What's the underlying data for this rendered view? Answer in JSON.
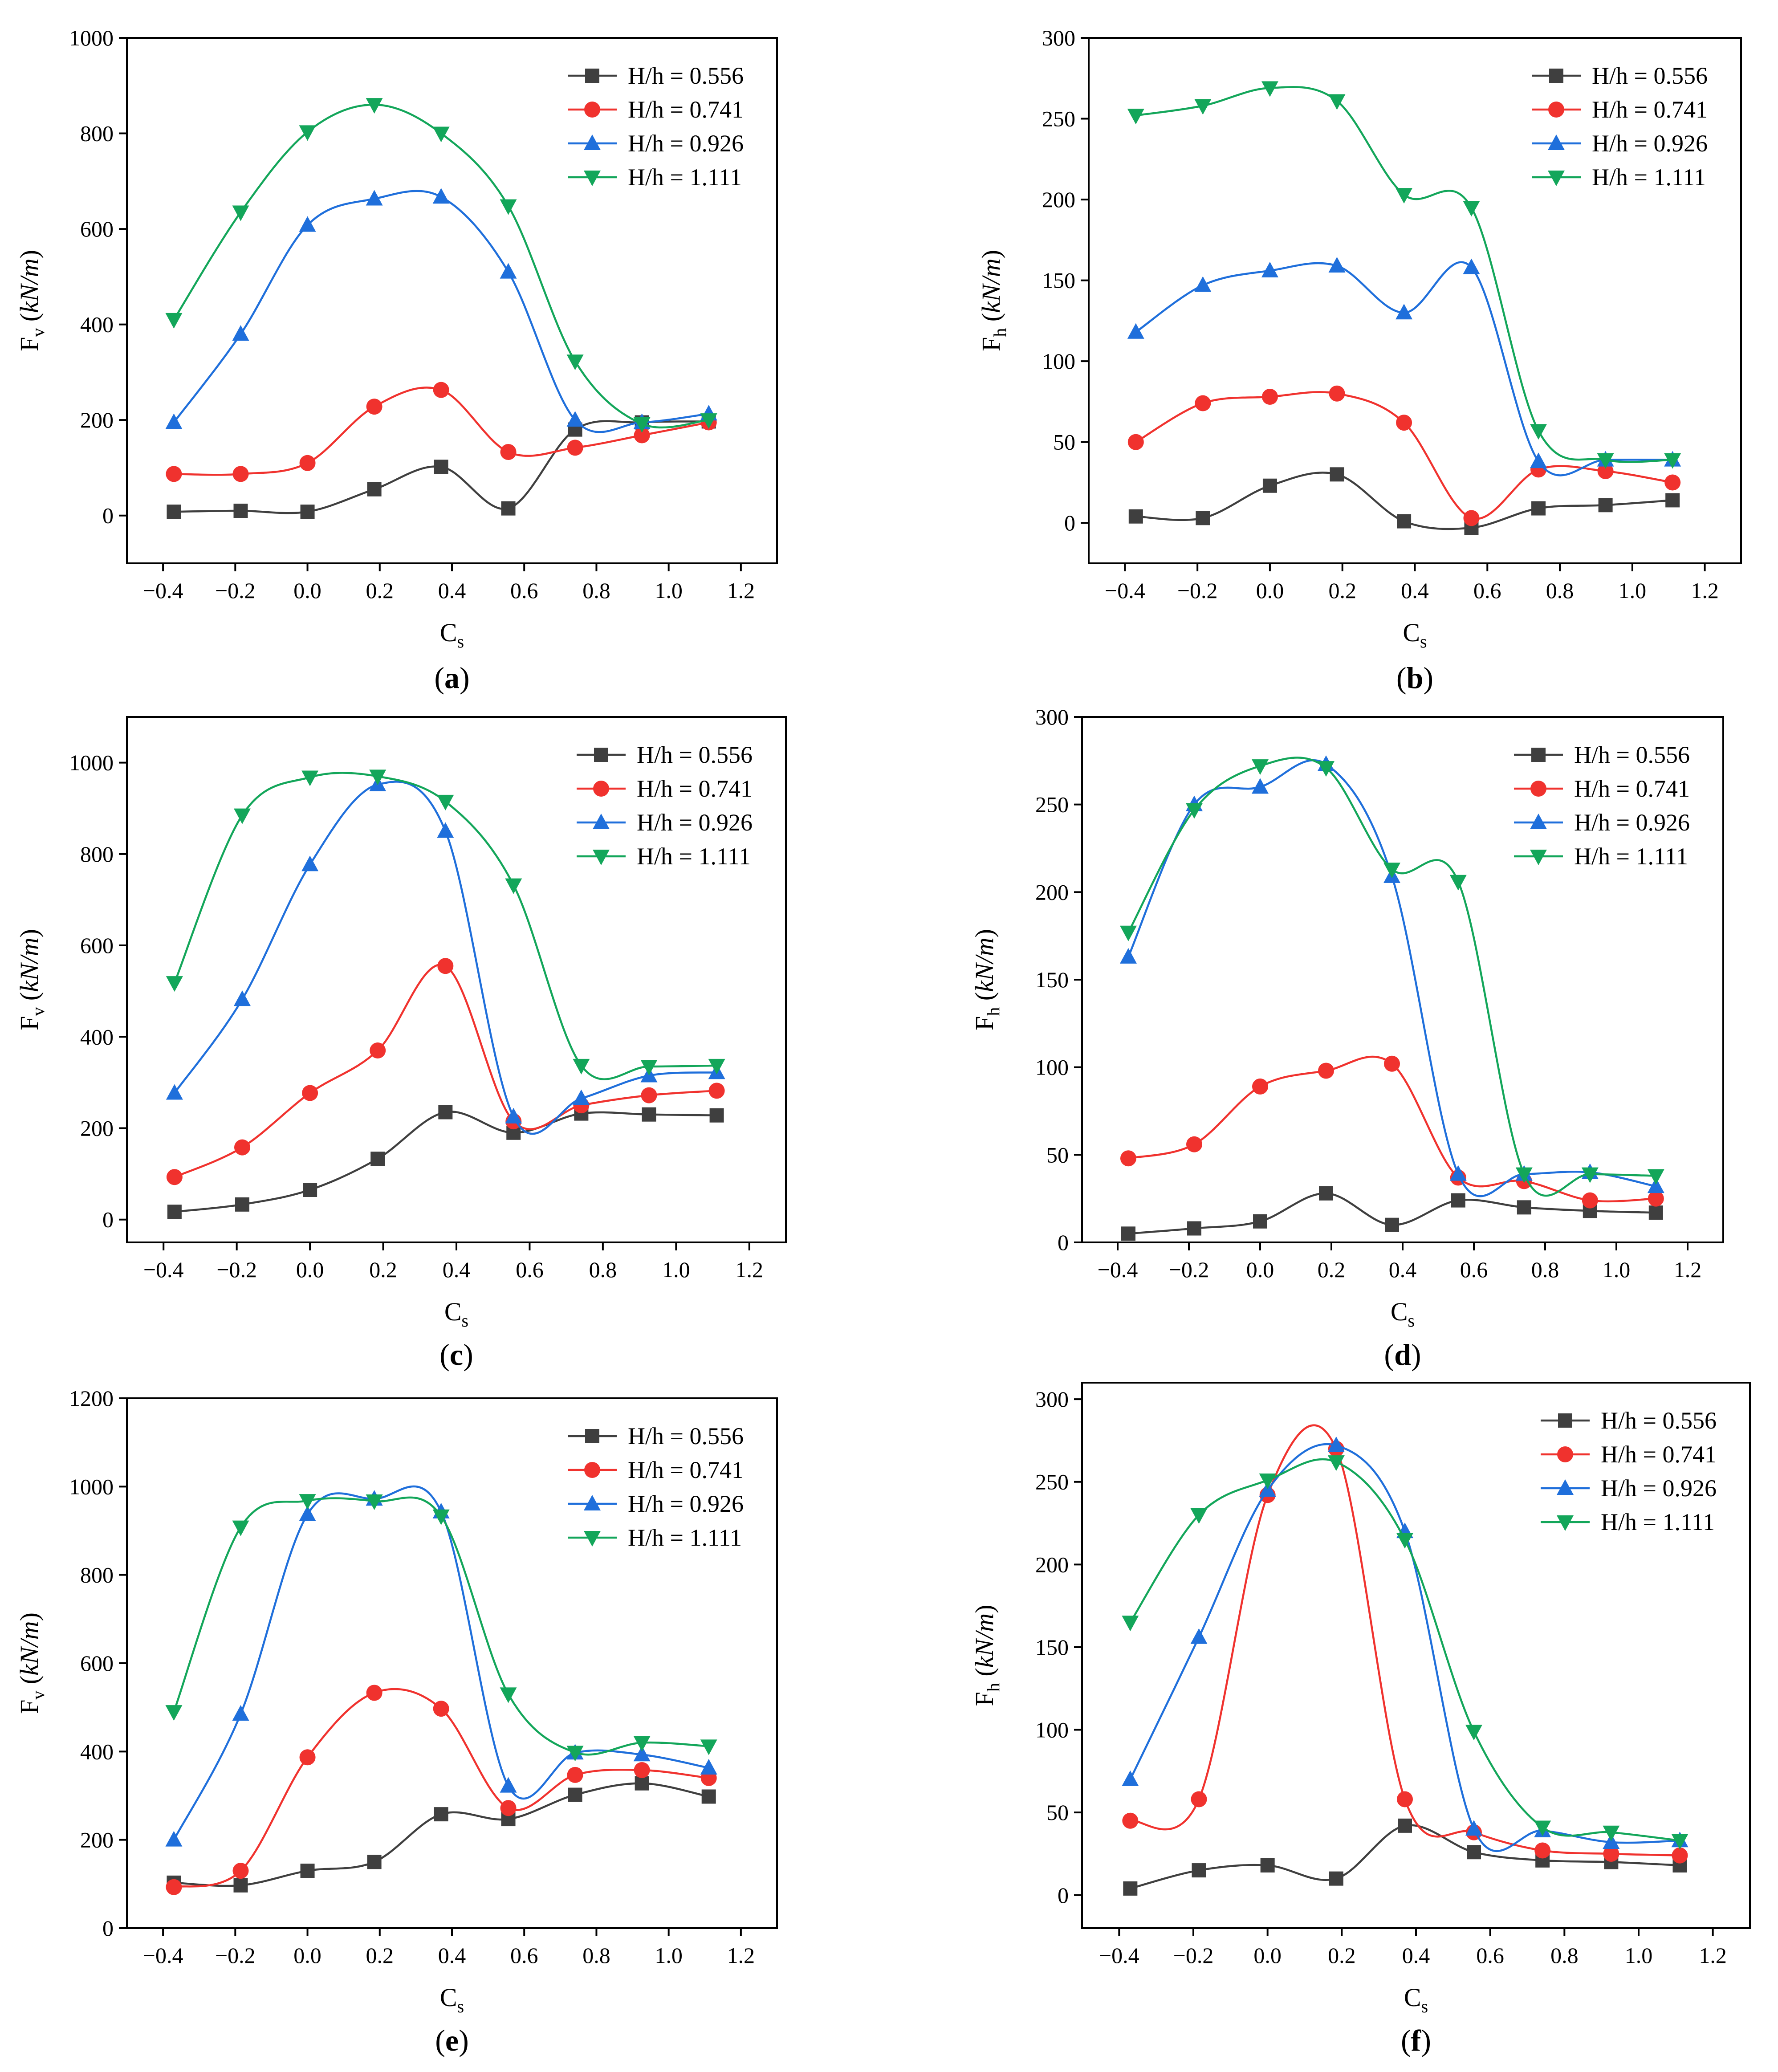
{
  "colors": {
    "H/h = 0.556": "#3f3f3f",
    "H/h = 0.741": "#f0322e",
    "H/h = 0.926": "#1f6fdb",
    "H/h = 1.111": "#13a65a"
  },
  "markers": {
    "H/h = 0.556": "square",
    "H/h = 0.741": "circle",
    "H/h = 0.926": "triangle-up",
    "H/h = 1.111": "triangle-down"
  },
  "chart_data": [
    {
      "panel": "a",
      "type": "line",
      "xlabel": "C",
      "xlabel_sub": "s",
      "ylabel": "F",
      "ylabel_sub": "v",
      "ylabel_unit": "kN/m",
      "xlim": [
        -0.5,
        1.3
      ],
      "ylim": [
        -100,
        1000
      ],
      "xticks": [
        "-0.4",
        "-0.2",
        "0.0",
        "0.2",
        "0.4",
        "0.6",
        "0.8",
        "1.0",
        "1.2"
      ],
      "yticks": [
        "0",
        "200",
        "400",
        "600",
        "800",
        "1000"
      ],
      "x": [
        -0.37,
        -0.185,
        0,
        0.185,
        0.37,
        0.556,
        0.741,
        0.926,
        1.111
      ],
      "series": [
        {
          "name": "H/h = 0.556",
          "values": [
            8,
            10,
            8,
            55,
            102,
            15,
            180,
            195,
            197
          ]
        },
        {
          "name": "H/h = 0.741",
          "values": [
            87,
            87,
            110,
            228,
            263,
            133,
            142,
            168,
            195
          ]
        },
        {
          "name": "H/h = 0.926",
          "values": [
            195,
            380,
            608,
            663,
            667,
            510,
            200,
            195,
            213
          ]
        },
        {
          "name": "H/h = 1.111",
          "values": [
            410,
            635,
            803,
            860,
            800,
            648,
            323,
            192,
            200
          ]
        }
      ],
      "legend": [
        "H/h = 0.556",
        "H/h = 0.741",
        "H/h = 0.926",
        "H/h = 1.111"
      ]
    },
    {
      "panel": "b",
      "type": "line",
      "xlabel": "C",
      "xlabel_sub": "s",
      "ylabel": "F",
      "ylabel_sub": "h",
      "ylabel_unit": "kN/m",
      "xlim": [
        -0.5,
        1.3
      ],
      "ylim": [
        -25,
        300
      ],
      "xticks": [
        "-0.4",
        "-0.2",
        "0.0",
        "0.2",
        "0.4",
        "0.6",
        "0.8",
        "1.0",
        "1.2"
      ],
      "yticks": [
        "0",
        "50",
        "100",
        "150",
        "200",
        "250",
        "300"
      ],
      "x": [
        -0.37,
        -0.185,
        0,
        0.185,
        0.37,
        0.556,
        0.741,
        0.926,
        1.111
      ],
      "series": [
        {
          "name": "H/h = 0.556",
          "values": [
            4,
            3,
            23,
            30,
            1,
            -3,
            9,
            11,
            14
          ]
        },
        {
          "name": "H/h = 0.741",
          "values": [
            50,
            74,
            78,
            80,
            62,
            3,
            33,
            32,
            25
          ]
        },
        {
          "name": "H/h = 0.926",
          "values": [
            118,
            147,
            156,
            159,
            130,
            158,
            38,
            39,
            39
          ]
        },
        {
          "name": "H/h = 1.111",
          "values": [
            252,
            258,
            269,
            261,
            203,
            195,
            57,
            39,
            39
          ]
        }
      ],
      "legend": [
        "H/h = 0.556",
        "H/h = 0.741",
        "H/h = 0.926",
        "H/h = 1.111"
      ]
    },
    {
      "panel": "c",
      "type": "line",
      "xlabel": "C",
      "xlabel_sub": "s",
      "ylabel": "F",
      "ylabel_sub": "v",
      "ylabel_unit": "kN/m",
      "xlim": [
        -0.5,
        1.3
      ],
      "ylim": [
        -50,
        1100
      ],
      "xticks": [
        "-0.4",
        "-0.2",
        "0.0",
        "0.2",
        "0.4",
        "0.6",
        "0.8",
        "1.0",
        "1.2"
      ],
      "yticks": [
        "0",
        "200",
        "400",
        "600",
        "800",
        "1000"
      ],
      "x": [
        -0.37,
        -0.185,
        0,
        0.185,
        0.37,
        0.556,
        0.741,
        0.926,
        1.111
      ],
      "series": [
        {
          "name": "H/h = 0.556",
          "values": [
            17,
            33,
            65,
            133,
            235,
            190,
            232,
            230,
            228
          ]
        },
        {
          "name": "H/h = 0.741",
          "values": [
            93,
            158,
            277,
            370,
            555,
            215,
            250,
            272,
            282
          ]
        },
        {
          "name": "H/h = 0.926",
          "values": [
            277,
            482,
            777,
            952,
            850,
            225,
            265,
            315,
            322
          ]
        },
        {
          "name": "H/h = 1.111",
          "values": [
            518,
            885,
            968,
            970,
            915,
            732,
            337,
            335,
            337
          ]
        }
      ],
      "legend": [
        "H/h = 0.556",
        "H/h = 0.741",
        "H/h = 0.926",
        "H/h = 1.111"
      ]
    },
    {
      "panel": "d",
      "type": "line",
      "xlabel": "C",
      "xlabel_sub": "s",
      "ylabel": "F",
      "ylabel_sub": "h",
      "ylabel_unit": "kN/m",
      "xlim": [
        -0.5,
        1.3
      ],
      "ylim": [
        0,
        300
      ],
      "xticks": [
        "-0.4",
        "-0.2",
        "0.0",
        "0.2",
        "0.4",
        "0.6",
        "0.8",
        "1.0",
        "1.2"
      ],
      "yticks": [
        "0",
        "50",
        "100",
        "150",
        "200",
        "250",
        "300"
      ],
      "x": [
        -0.37,
        -0.185,
        0,
        0.185,
        0.37,
        0.556,
        0.741,
        0.926,
        1.111
      ],
      "series": [
        {
          "name": "H/h = 0.556",
          "values": [
            5,
            8,
            12,
            28,
            10,
            24,
            20,
            18,
            17
          ]
        },
        {
          "name": "H/h = 0.741",
          "values": [
            48,
            56,
            89,
            98,
            102,
            37,
            35,
            24,
            25
          ]
        },
        {
          "name": "H/h = 0.926",
          "values": [
            163,
            250,
            260,
            273,
            209,
            39,
            39,
            40,
            32
          ]
        },
        {
          "name": "H/h = 1.111",
          "values": [
            177,
            247,
            272,
            271,
            213,
            206,
            39,
            39,
            38
          ]
        }
      ],
      "legend": [
        "H/h = 0.556",
        "H/h = 0.741",
        "H/h = 0.926",
        "H/h = 1.111"
      ]
    },
    {
      "panel": "e",
      "type": "line",
      "xlabel": "C",
      "xlabel_sub": "s",
      "ylabel": "F",
      "ylabel_sub": "v",
      "ylabel_unit": "kN/m",
      "xlim": [
        -0.5,
        1.3
      ],
      "ylim": [
        0,
        1200
      ],
      "xticks": [
        "-0.4",
        "-0.2",
        "0.0",
        "0.2",
        "0.4",
        "0.6",
        "0.8",
        "1.0",
        "1.2"
      ],
      "yticks": [
        "0",
        "200",
        "400",
        "600",
        "800",
        "1000",
        "1200"
      ],
      "x": [
        -0.37,
        -0.185,
        0,
        0.185,
        0.37,
        0.556,
        0.741,
        0.926,
        1.111
      ],
      "series": [
        {
          "name": "H/h = 0.556",
          "values": [
            103,
            97,
            130,
            150,
            258,
            247,
            302,
            328,
            298
          ]
        },
        {
          "name": "H/h = 0.741",
          "values": [
            93,
            130,
            387,
            533,
            497,
            272,
            347,
            358,
            340
          ]
        },
        {
          "name": "H/h = 0.926",
          "values": [
            200,
            485,
            937,
            972,
            943,
            322,
            397,
            393,
            363
          ]
        },
        {
          "name": "H/h = 1.111",
          "values": [
            490,
            908,
            968,
            967,
            933,
            530,
            398,
            420,
            412
          ]
        }
      ],
      "legend": [
        "H/h = 0.556",
        "H/h = 0.741",
        "H/h = 0.926",
        "H/h = 1.111"
      ]
    },
    {
      "panel": "f",
      "type": "line",
      "xlabel": "C",
      "xlabel_sub": "s",
      "ylabel": "F",
      "ylabel_sub": "h",
      "ylabel_unit": "kN/m",
      "xlim": [
        -0.5,
        1.3
      ],
      "ylim": [
        -20,
        310
      ],
      "xticks": [
        "-0.4",
        "-0.2",
        "0.0",
        "0.2",
        "0.4",
        "0.6",
        "0.8",
        "1.0",
        "1.2"
      ],
      "yticks": [
        "0",
        "50",
        "100",
        "150",
        "200",
        "250",
        "300"
      ],
      "x": [
        -0.37,
        -0.185,
        0,
        0.185,
        0.37,
        0.556,
        0.741,
        0.926,
        1.111
      ],
      "series": [
        {
          "name": "H/h = 0.556",
          "values": [
            4,
            15,
            18,
            10,
            42,
            26,
            21,
            20,
            18
          ]
        },
        {
          "name": "H/h = 0.741",
          "values": [
            45,
            58,
            242,
            270,
            58,
            38,
            27,
            25,
            24
          ]
        },
        {
          "name": "H/h = 0.926",
          "values": [
            70,
            156,
            245,
            272,
            220,
            40,
            39,
            32,
            33
          ]
        },
        {
          "name": "H/h = 1.111",
          "values": [
            165,
            230,
            251,
            262,
            215,
            99,
            41,
            38,
            33
          ]
        }
      ],
      "legend": [
        "H/h = 0.556",
        "H/h = 0.741",
        "H/h = 0.926",
        "H/h = 1.111"
      ]
    }
  ]
}
